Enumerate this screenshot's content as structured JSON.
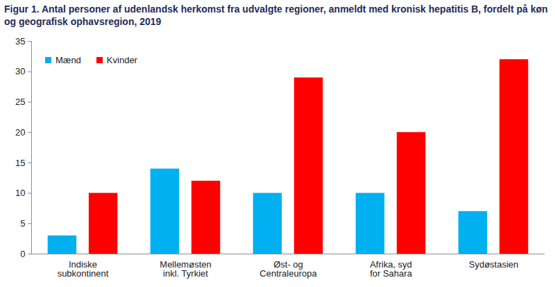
{
  "chart_data": {
    "type": "bar",
    "title": "Figur 1. Antal personer af udenlandsk herkomst fra udvalgte regioner, anmeldt med kronisk hepatitis B, fordelt på køn og geografisk ophavsregion, 2019",
    "categories": [
      "Indiske\nsubkontinent",
      "Mellemøsten\ninkl. Tyrkiet",
      "Øst- og\nCentraleuropa",
      "Afrika, syd\nfor Sahara",
      "Sydøstasien"
    ],
    "series": [
      {
        "name": "Mænd",
        "color": "#00b0f0",
        "values": [
          3,
          14,
          10,
          10,
          7
        ]
      },
      {
        "name": "Kvinder",
        "color": "#ff0000",
        "values": [
          10,
          12,
          29,
          20,
          32
        ]
      }
    ],
    "ylim": [
      0,
      35
    ],
    "yticks": [
      0,
      5,
      10,
      15,
      20,
      25,
      30,
      35
    ],
    "grid": false,
    "legend": "top-left"
  }
}
